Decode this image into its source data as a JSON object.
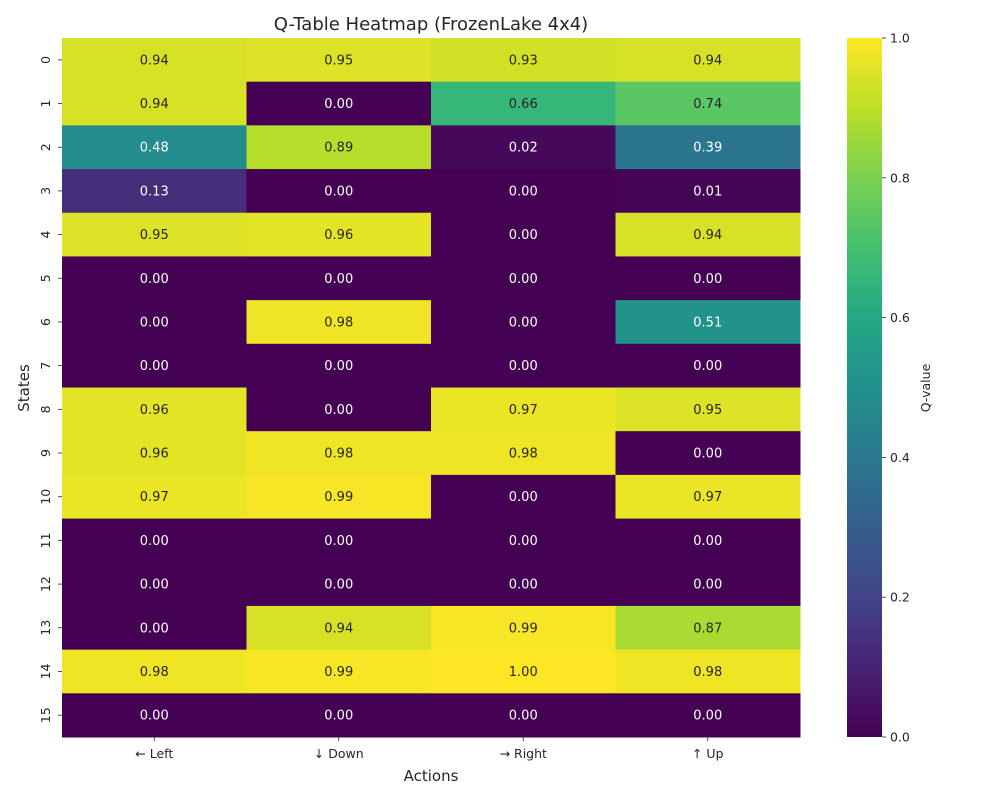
{
  "chart_data": {
    "type": "heatmap",
    "title": "Q-Table Heatmap (FrozenLake 4x4)",
    "xlabel": "Actions",
    "ylabel": "States",
    "x_categories": [
      "← Left",
      "↓ Down",
      "→ Right",
      "↑ Up"
    ],
    "y_categories": [
      "0",
      "1",
      "2",
      "3",
      "4",
      "5",
      "6",
      "7",
      "8",
      "9",
      "10",
      "11",
      "12",
      "13",
      "14",
      "15"
    ],
    "values": [
      [
        0.94,
        0.95,
        0.93,
        0.94
      ],
      [
        0.94,
        0.0,
        0.66,
        0.74
      ],
      [
        0.48,
        0.89,
        0.02,
        0.39
      ],
      [
        0.13,
        0.0,
        0.0,
        0.01
      ],
      [
        0.95,
        0.96,
        0.0,
        0.94
      ],
      [
        0.0,
        0.0,
        0.0,
        0.0
      ],
      [
        0.0,
        0.98,
        0.0,
        0.51
      ],
      [
        0.0,
        0.0,
        0.0,
        0.0
      ],
      [
        0.96,
        0.0,
        0.97,
        0.95
      ],
      [
        0.96,
        0.98,
        0.98,
        0.0
      ],
      [
        0.97,
        0.99,
        0.0,
        0.97
      ],
      [
        0.0,
        0.0,
        0.0,
        0.0
      ],
      [
        0.0,
        0.0,
        0.0,
        0.0
      ],
      [
        0.0,
        0.94,
        0.99,
        0.87
      ],
      [
        0.98,
        0.99,
        1.0,
        0.98
      ],
      [
        0.0,
        0.0,
        0.0,
        0.0
      ]
    ],
    "colormap": "viridis",
    "vmin": 0.0,
    "vmax": 1.0,
    "colorbar": {
      "label": "Q-value",
      "ticks": [
        "0.0",
        "0.2",
        "0.4",
        "0.6",
        "0.8",
        "1.0"
      ]
    }
  }
}
